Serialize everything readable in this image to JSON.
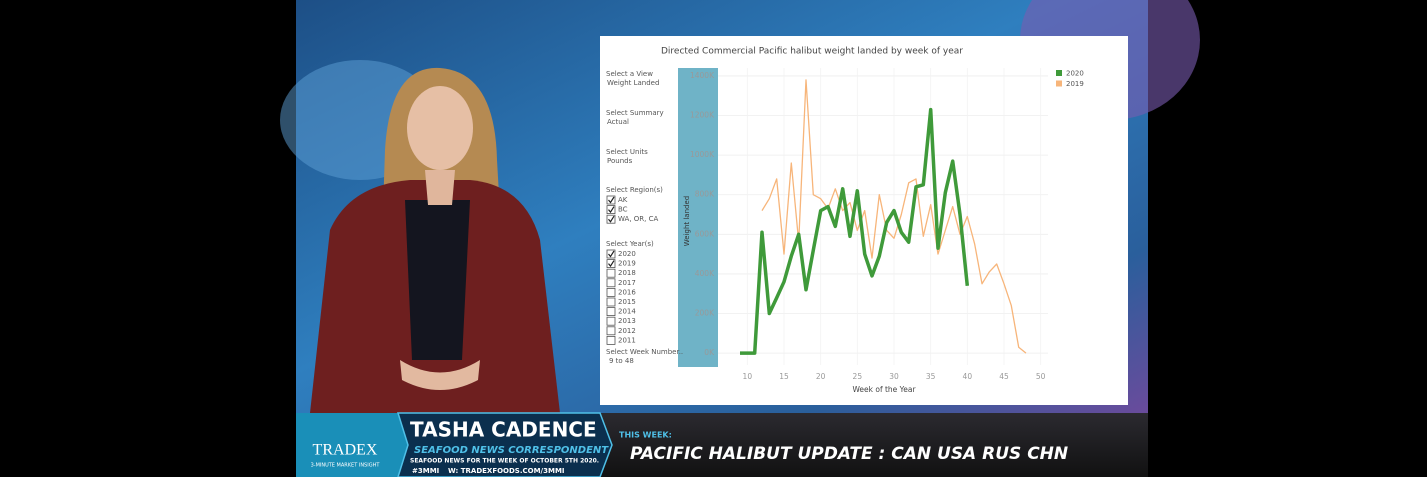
{
  "chart_data": {
    "type": "line",
    "title": "Directed Commercial Pacific halibut weight landed by week of year",
    "x_label": "Week of the Year",
    "y_label": "Weight landed",
    "x": [
      9,
      10,
      11,
      12,
      13,
      14,
      15,
      16,
      17,
      18,
      19,
      20,
      21,
      22,
      23,
      24,
      25,
      26,
      27,
      28,
      29,
      30,
      31,
      32,
      33,
      34,
      35,
      36,
      37,
      38,
      39,
      40,
      41,
      42,
      43,
      44,
      45,
      46,
      47,
      48
    ],
    "series": [
      {
        "name": "2020",
        "color": "#3f9a3a",
        "values": [
          0,
          0,
          0,
          610000,
          200000,
          280000,
          360000,
          490000,
          600000,
          320000,
          520000,
          720000,
          740000,
          640000,
          830000,
          590000,
          820000,
          500000,
          390000,
          490000,
          660000,
          720000,
          610000,
          560000,
          840000,
          850000,
          1230000,
          530000,
          810000,
          970000,
          700000,
          340000,
          null,
          null,
          null,
          null,
          null,
          null,
          null,
          null
        ]
      },
      {
        "name": "2019",
        "color": "#f7b57a",
        "values": [
          null,
          null,
          null,
          720000,
          780000,
          880000,
          500000,
          960000,
          560000,
          1380000,
          800000,
          780000,
          730000,
          830000,
          720000,
          760000,
          620000,
          720000,
          480000,
          800000,
          620000,
          580000,
          700000,
          860000,
          880000,
          590000,
          750000,
          500000,
          620000,
          740000,
          600000,
          690000,
          550000,
          350000,
          410000,
          450000,
          350000,
          240000,
          30000,
          0
        ]
      }
    ],
    "xlim": [
      6,
      51
    ],
    "xticks": [
      10,
      15,
      20,
      25,
      30,
      35,
      40,
      45,
      50
    ],
    "ylim": [
      -60000,
      1440000
    ],
    "yticks": [
      {
        "value": 0,
        "label": "0K"
      },
      {
        "value": 200000,
        "label": "200K"
      },
      {
        "value": 400000,
        "label": "400K"
      },
      {
        "value": 600000,
        "label": "600K"
      },
      {
        "value": 800000,
        "label": "800K"
      },
      {
        "value": 1000000,
        "label": "1000K"
      },
      {
        "value": 1200000,
        "label": "1200K"
      },
      {
        "value": 1400000,
        "label": "1400K"
      }
    ],
    "grid": true,
    "legend": "top-right"
  },
  "filters": [
    {
      "label": "Select a View",
      "value": "Weight Landed"
    },
    {
      "label": "Select Summary",
      "value": "Actual"
    },
    {
      "label": "Select Units",
      "value": "Pounds"
    }
  ],
  "regions": {
    "label": "Select Region(s)",
    "options": [
      {
        "text": "AK",
        "checked": true
      },
      {
        "text": "BC",
        "checked": true
      },
      {
        "text": "WA, OR, CA",
        "checked": true
      }
    ]
  },
  "years": {
    "label": "Select Year(s)",
    "options": [
      {
        "text": "2020",
        "checked": true
      },
      {
        "text": "2019",
        "checked": true
      },
      {
        "text": "2018",
        "checked": false
      },
      {
        "text": "2017",
        "checked": false
      },
      {
        "text": "2016",
        "checked": false
      },
      {
        "text": "2015",
        "checked": false
      },
      {
        "text": "2014",
        "checked": false
      },
      {
        "text": "2013",
        "checked": false
      },
      {
        "text": "2012",
        "checked": false
      },
      {
        "text": "2011",
        "checked": false
      }
    ]
  },
  "week_filter": {
    "label": "Select Week Number..",
    "value": "9 to 48"
  },
  "lower_third": {
    "brand": "TRADEX",
    "brand_sub": "3-MINUTE MARKET INSIGHT",
    "name": "TASHA CADENCE",
    "role": "SEAFOOD NEWS CORRESPONDENT",
    "week": "SEAFOOD NEWS FOR THE WEEK OF OCTOBER 5TH 2020.",
    "hashtag": "#3MMI",
    "website": "W: TRADEXFOODS.COM/3MMI",
    "this_week": "THIS WEEK:",
    "headline": "PACIFIC HALIBUT UPDATE : CAN USA RUS CHN"
  }
}
